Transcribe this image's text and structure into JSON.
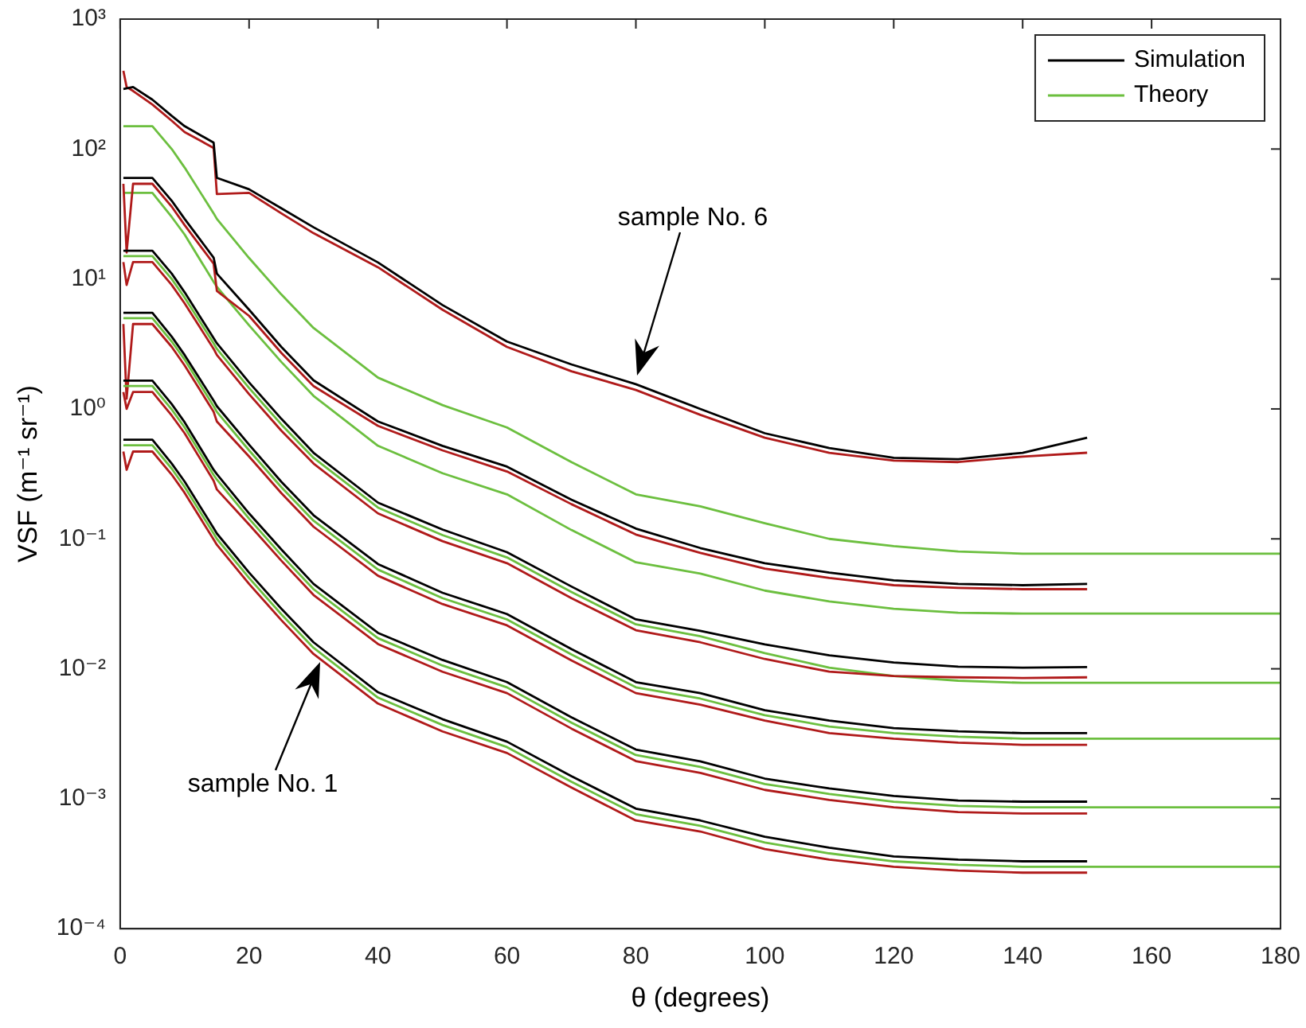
{
  "chart_data": {
    "type": "line",
    "xlabel": "θ (degrees)",
    "ylabel": "VSF (m⁻¹ sr⁻¹)",
    "x": [
      0.5,
      2,
      5,
      8,
      10,
      14.5,
      15,
      20,
      25,
      30,
      40,
      50,
      60,
      70,
      80,
      90,
      100,
      110,
      120,
      130,
      140,
      150
    ],
    "series": [
      {
        "name": "Simulation",
        "color": "#000000",
        "values": [
          0.58,
          0.58,
          0.58,
          0.38,
          0.276,
          0.121,
          0.11,
          0.055,
          0.029,
          0.016,
          0.0066,
          0.0041,
          0.00275,
          0.00149,
          0.00084,
          0.00068,
          0.00051,
          0.00042,
          0.00036,
          0.00034,
          0.00033,
          0.00033
        ]
      },
      {
        "color": "#b01a1a",
        "x": [
          0.5,
          1,
          2,
          5,
          8,
          10,
          14.5,
          15,
          20,
          25,
          30,
          40,
          50,
          60,
          70,
          80,
          90,
          100,
          110,
          120,
          130,
          140,
          150
        ],
        "values": [
          0.47,
          0.34,
          0.47,
          0.47,
          0.312,
          0.226,
          0.099,
          0.09,
          0.045,
          0.0237,
          0.013,
          0.0054,
          0.0033,
          0.00225,
          0.00122,
          0.00068,
          0.00056,
          0.00041,
          0.00034,
          0.0003,
          0.00028,
          0.00027,
          0.00027
        ]
      },
      {
        "name": "Theory",
        "color": "#6cbf3f",
        "x": [
          0.5,
          2,
          5,
          8,
          10,
          14.5,
          15,
          20,
          25,
          30,
          40,
          50,
          60,
          70,
          80,
          90,
          100,
          110,
          120,
          130,
          140,
          150,
          160,
          170,
          180
        ],
        "values": [
          0.525,
          0.525,
          0.525,
          0.347,
          0.251,
          0.11,
          0.1,
          0.05,
          0.0263,
          0.0145,
          0.006,
          0.0037,
          0.0025,
          0.00135,
          0.00076,
          0.00062,
          0.00046,
          0.00038,
          0.00033,
          0.00031,
          0.0003,
          0.0003,
          0.0003,
          0.0003,
          0.0003
        ]
      },
      {
        "color": "#000000",
        "values": [
          1.65,
          1.65,
          1.65,
          1.09,
          0.79,
          0.34,
          0.315,
          0.157,
          0.083,
          0.045,
          0.0189,
          0.0117,
          0.0079,
          0.00424,
          0.00239,
          0.00194,
          0.00143,
          0.0012,
          0.00105,
          0.00097,
          0.00095,
          0.00095
        ]
      },
      {
        "color": "#b01a1a",
        "x": [
          0.5,
          1,
          2,
          5,
          8,
          10,
          14.5,
          15,
          20,
          25,
          30,
          40,
          50,
          60,
          70,
          80,
          90,
          100,
          110,
          120,
          130,
          140,
          150
        ],
        "values": [
          1.35,
          1.0,
          1.35,
          1.35,
          0.89,
          0.65,
          0.28,
          0.24,
          0.129,
          0.068,
          0.037,
          0.0155,
          0.0095,
          0.0065,
          0.00347,
          0.00195,
          0.00158,
          0.00117,
          0.00098,
          0.00086,
          0.00079,
          0.00077,
          0.00077
        ]
      },
      {
        "color": "#6cbf3f",
        "x": [
          0.5,
          2,
          5,
          8,
          10,
          14.5,
          15,
          20,
          25,
          30,
          40,
          50,
          60,
          70,
          80,
          90,
          100,
          110,
          120,
          130,
          140,
          150,
          160,
          170,
          180
        ],
        "values": [
          1.5,
          1.5,
          1.5,
          0.99,
          0.72,
          0.31,
          0.286,
          0.143,
          0.075,
          0.041,
          0.0172,
          0.0106,
          0.0072,
          0.00385,
          0.00217,
          0.00176,
          0.0013,
          0.00109,
          0.00095,
          0.00088,
          0.00086,
          0.00086,
          0.00086,
          0.00086,
          0.00086
        ]
      },
      {
        "color": "#000000",
        "values": [
          5.5,
          5.5,
          5.5,
          3.6,
          2.6,
          1.16,
          1.05,
          0.53,
          0.275,
          0.152,
          0.064,
          0.0385,
          0.0264,
          0.0142,
          0.0079,
          0.0065,
          0.0048,
          0.004,
          0.0035,
          0.0033,
          0.0032,
          0.0032
        ]
      },
      {
        "color": "#b01a1a",
        "x": [
          0.5,
          1,
          2,
          5,
          8,
          10,
          14.5,
          15,
          20,
          25,
          30,
          40,
          50,
          60,
          70,
          80,
          90,
          100,
          110,
          120,
          130,
          140,
          150
        ],
        "values": [
          4.5,
          1.2,
          4.5,
          4.5,
          3.0,
          2.16,
          0.95,
          0.8,
          0.43,
          0.225,
          0.124,
          0.052,
          0.0315,
          0.0216,
          0.0116,
          0.0065,
          0.0053,
          0.004,
          0.0032,
          0.0029,
          0.0027,
          0.0026,
          0.0026
        ]
      },
      {
        "color": "#6cbf3f",
        "x": [
          0.5,
          2,
          5,
          8,
          10,
          14.5,
          15,
          20,
          25,
          30,
          40,
          50,
          60,
          70,
          80,
          90,
          100,
          110,
          120,
          130,
          140,
          150,
          160,
          170,
          180
        ],
        "values": [
          5,
          5,
          5,
          3.3,
          2.4,
          1.05,
          0.95,
          0.48,
          0.25,
          0.138,
          0.058,
          0.035,
          0.024,
          0.0129,
          0.0072,
          0.0059,
          0.0044,
          0.0036,
          0.0032,
          0.003,
          0.0029,
          0.0029,
          0.0029,
          0.0029,
          0.0029
        ]
      },
      {
        "color": "#000000",
        "values": [
          16.5,
          16.5,
          16.5,
          11,
          7.9,
          3.5,
          3.2,
          1.6,
          0.84,
          0.46,
          0.19,
          0.118,
          0.079,
          0.043,
          0.024,
          0.0196,
          0.0154,
          0.0127,
          0.0112,
          0.0104,
          0.0102,
          0.0103
        ]
      },
      {
        "color": "#b01a1a",
        "x": [
          0.5,
          1,
          2,
          5,
          8,
          10,
          14.5,
          15,
          20,
          25,
          30,
          40,
          50,
          60,
          70,
          80,
          90,
          100,
          110,
          120,
          130,
          140,
          150
        ],
        "values": [
          13.5,
          9,
          13.5,
          13.5,
          9,
          6.5,
          2.9,
          2.6,
          1.3,
          0.68,
          0.38,
          0.157,
          0.096,
          0.065,
          0.035,
          0.0198,
          0.016,
          0.0119,
          0.0095,
          0.0088,
          0.0086,
          0.0085,
          0.0086
        ]
      },
      {
        "color": "#6cbf3f",
        "x": [
          0.5,
          2,
          5,
          8,
          10,
          14.5,
          15,
          20,
          25,
          30,
          40,
          50,
          60,
          70,
          80,
          90,
          100,
          110,
          120,
          130,
          140,
          150,
          160,
          170,
          180
        ],
        "values": [
          15,
          15,
          15,
          10,
          7.2,
          3.2,
          2.9,
          1.45,
          0.76,
          0.42,
          0.174,
          0.107,
          0.072,
          0.039,
          0.022,
          0.0178,
          0.0132,
          0.0102,
          0.0088,
          0.0081,
          0.0078,
          0.0078,
          0.0078,
          0.0078,
          0.0078
        ]
      },
      {
        "color": "#000000",
        "values": [
          60,
          60,
          60,
          40,
          29,
          14.6,
          11,
          5.8,
          3.0,
          1.66,
          0.8,
          0.52,
          0.36,
          0.2,
          0.12,
          0.085,
          0.065,
          0.055,
          0.048,
          0.045,
          0.044,
          0.045
        ]
      },
      {
        "color": "#b01a1a",
        "x": [
          0.5,
          1,
          2,
          5,
          8,
          10,
          14.5,
          15,
          20,
          25,
          30,
          40,
          50,
          60,
          70,
          80,
          90,
          100,
          110,
          120,
          130,
          140,
          150
        ],
        "values": [
          54,
          16,
          54,
          54,
          36,
          26,
          13.1,
          8.1,
          5.2,
          2.7,
          1.5,
          0.74,
          0.48,
          0.33,
          0.185,
          0.108,
          0.078,
          0.059,
          0.05,
          0.044,
          0.042,
          0.041,
          0.041
        ]
      },
      {
        "color": "#6cbf3f",
        "x": [
          0.5,
          2,
          5,
          8,
          10,
          14.5,
          15,
          20,
          25,
          30,
          40,
          50,
          60,
          70,
          80,
          90,
          100,
          110,
          120,
          130,
          140,
          150,
          160,
          170,
          180
        ],
        "values": [
          46,
          46,
          46,
          30,
          22,
          9.5,
          8.7,
          4.4,
          2.3,
          1.26,
          0.52,
          0.32,
          0.22,
          0.117,
          0.066,
          0.054,
          0.04,
          0.033,
          0.029,
          0.027,
          0.0266,
          0.0266,
          0.0266,
          0.0266,
          0.0266
        ]
      },
      {
        "color": "#000000",
        "values": [
          290,
          300,
          240,
          180,
          150,
          112,
          60,
          49,
          35,
          25,
          13.4,
          6.3,
          3.3,
          2.2,
          1.55,
          1.0,
          0.65,
          0.5,
          0.42,
          0.41,
          0.46,
          0.6
        ]
      },
      {
        "color": "#b01a1a",
        "x": [
          0.5,
          1,
          2,
          5,
          8,
          10,
          14.5,
          15,
          20,
          25,
          30,
          40,
          50,
          60,
          70,
          80,
          90,
          100,
          110,
          120,
          130,
          140,
          150
        ],
        "values": [
          400,
          300,
          280,
          220,
          165,
          135,
          102,
          45,
          46,
          32,
          22.5,
          12.3,
          5.8,
          3.0,
          1.95,
          1.4,
          0.9,
          0.6,
          0.46,
          0.4,
          0.39,
          0.43,
          0.46
        ]
      },
      {
        "color": "#6cbf3f",
        "x": [
          0.5,
          2,
          5,
          8,
          10,
          14.5,
          15,
          20,
          25,
          30,
          40,
          50,
          60,
          70,
          80,
          90,
          100,
          110,
          120,
          130,
          140,
          150,
          160,
          170,
          180
        ],
        "values": [
          150,
          150,
          150,
          100,
          72,
          32,
          29,
          14.5,
          7.6,
          4.2,
          1.74,
          1.07,
          0.72,
          0.39,
          0.22,
          0.178,
          0.132,
          0.1,
          0.088,
          0.08,
          0.077,
          0.077,
          0.077,
          0.077,
          0.077
        ]
      }
    ],
    "xlim": [
      0,
      180
    ],
    "xticks": [
      0,
      20,
      40,
      60,
      80,
      100,
      120,
      140,
      160,
      180
    ],
    "log": "y",
    "ylim": [
      0.0001,
      1000
    ],
    "yticks": [
      {
        "value": 0.0001,
        "label": "10⁻⁴"
      },
      {
        "value": 0.001,
        "label": "10⁻³"
      },
      {
        "value": 0.01,
        "label": "10⁻²"
      },
      {
        "value": 0.1,
        "label": "10⁻¹"
      },
      {
        "value": 1,
        "label": "10⁰"
      },
      {
        "value": 10,
        "label": "10¹"
      },
      {
        "value": 100,
        "label": "10²"
      },
      {
        "value": 1000,
        "label": "10³"
      }
    ],
    "legend": "top right",
    "grid": false,
    "annotations": [
      "sample No. 6",
      "sample No. 1"
    ]
  }
}
